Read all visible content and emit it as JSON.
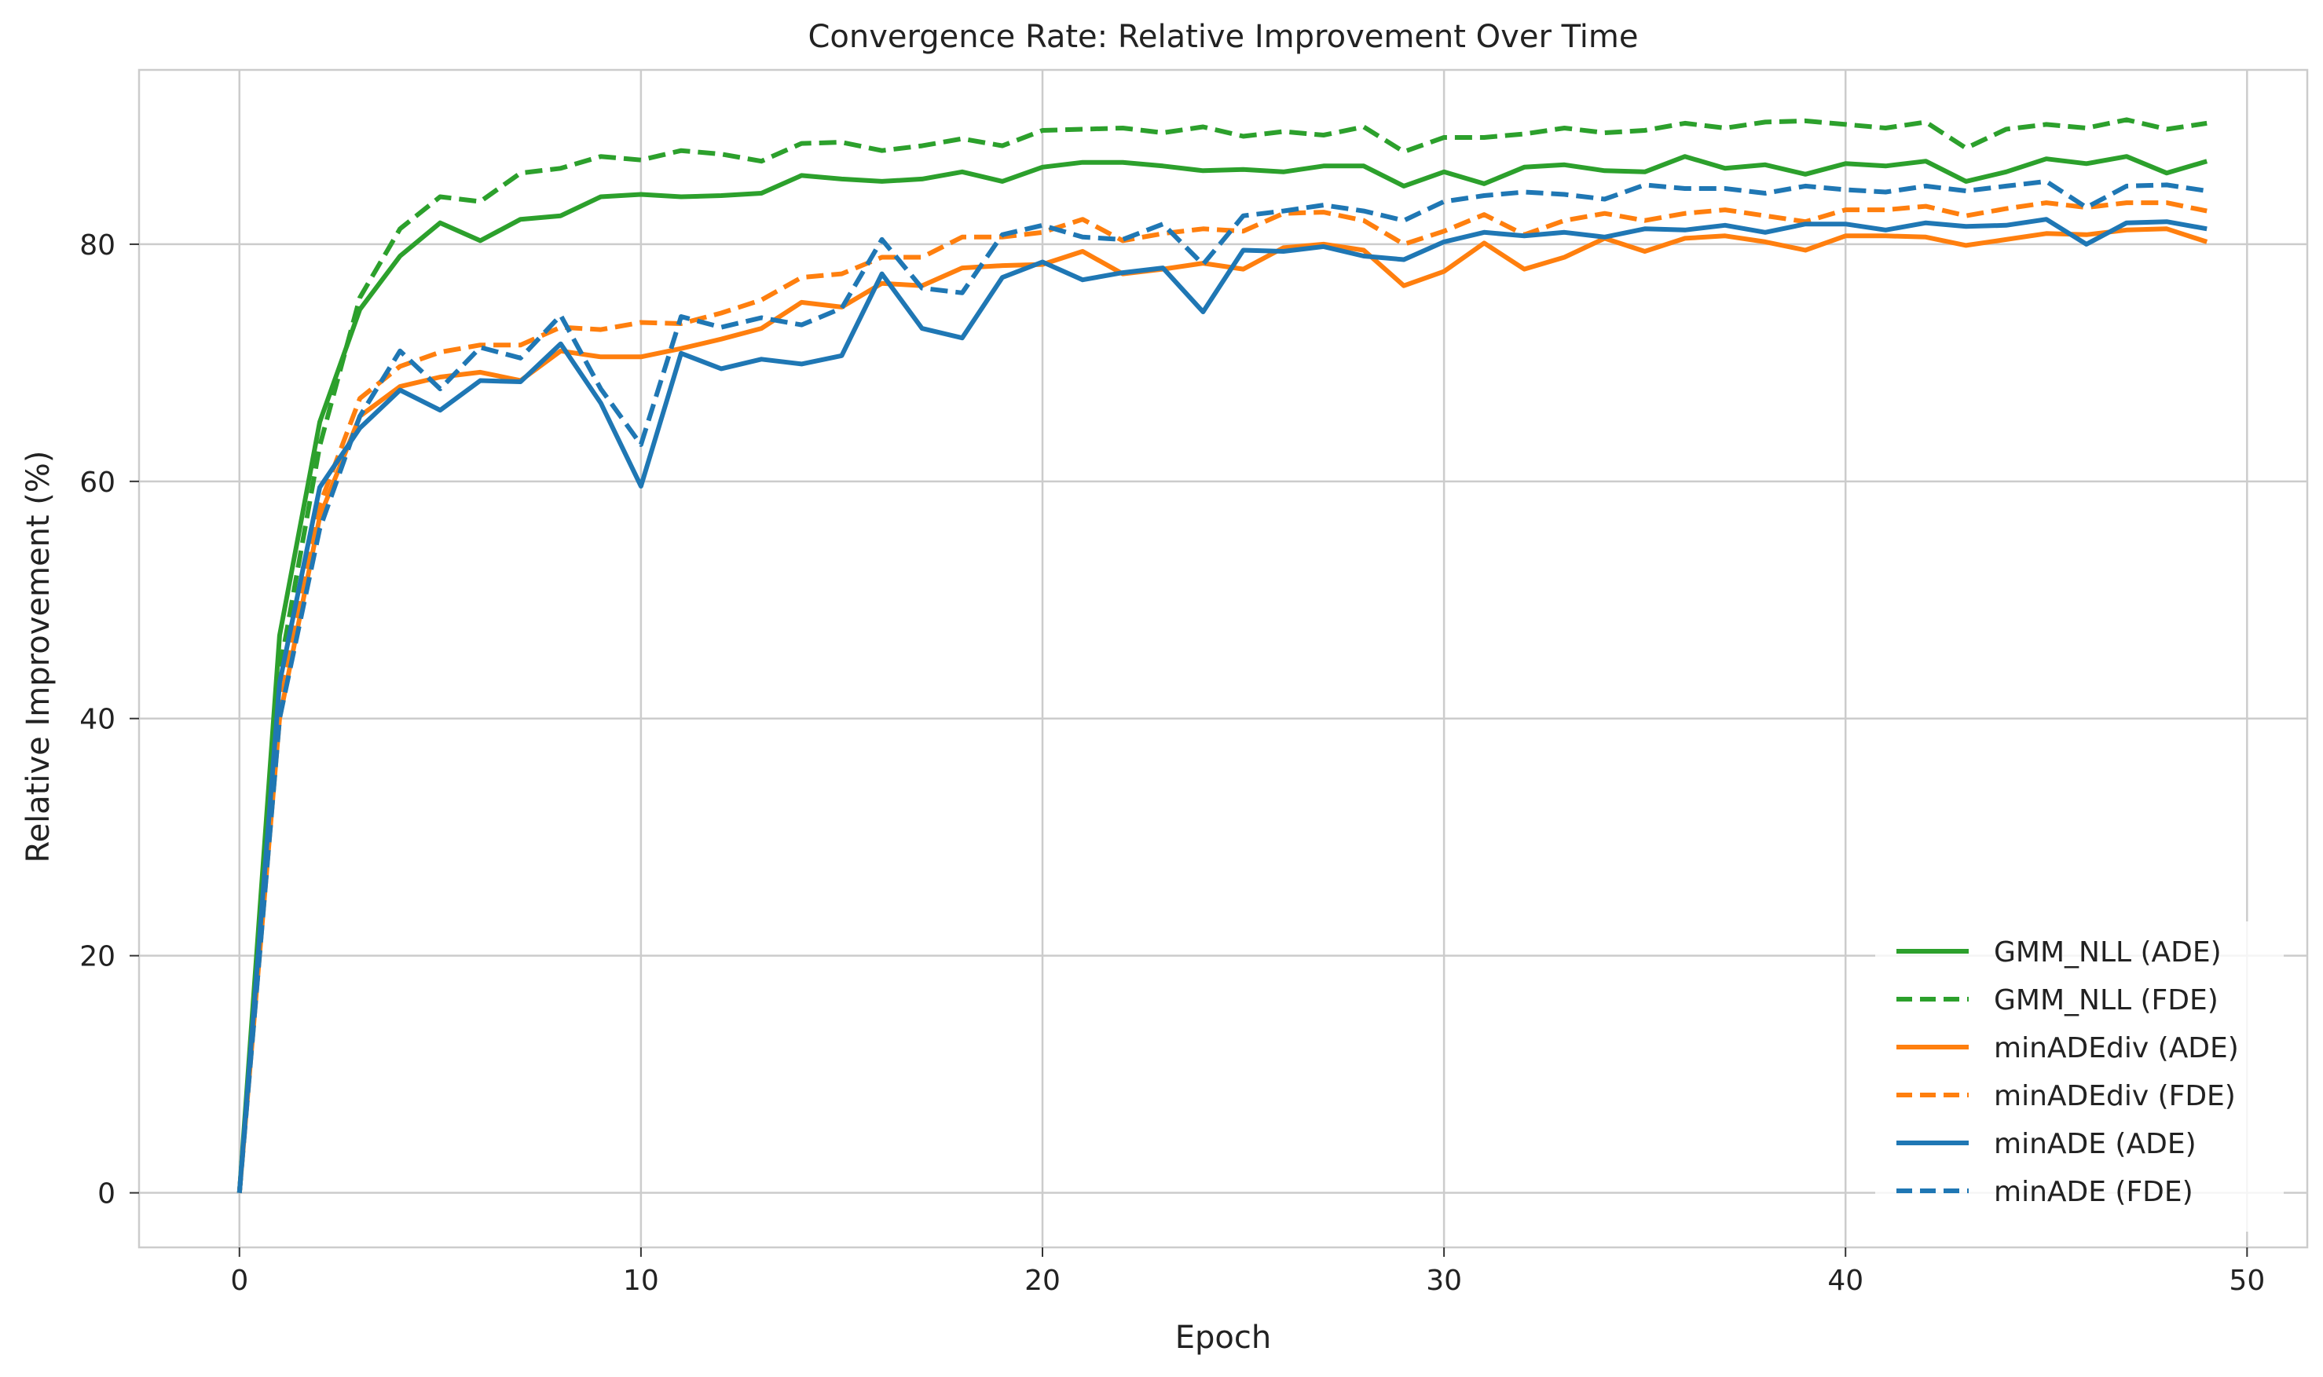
{
  "chart_data": {
    "type": "line",
    "title": "Convergence Rate: Relative Improvement Over Time",
    "xlabel": "Epoch",
    "ylabel": "Relative Improvement (%)",
    "xlim": [
      -2.5,
      51.5
    ],
    "ylim": [
      -4.6,
      94.7
    ],
    "xticks": [
      0,
      10,
      20,
      30,
      40,
      50
    ],
    "yticks": [
      0,
      20,
      40,
      60,
      80
    ],
    "grid": true,
    "legend_position": "lower-right",
    "x": [
      0,
      1,
      2,
      3,
      4,
      5,
      6,
      7,
      8,
      9,
      10,
      11,
      12,
      13,
      14,
      15,
      16,
      17,
      18,
      19,
      20,
      21,
      22,
      23,
      24,
      25,
      26,
      27,
      28,
      29,
      30,
      31,
      32,
      33,
      34,
      35,
      36,
      37,
      38,
      39,
      40,
      41,
      42,
      43,
      44,
      45,
      46,
      47,
      48,
      49
    ],
    "series": [
      {
        "name": "GMM_NLL (ADE)",
        "color": "#2ca02c",
        "dash": "solid",
        "values": [
          0,
          47,
          65,
          74.5,
          79,
          81.8,
          80.3,
          82.1,
          82.4,
          84,
          84.2,
          84,
          84.1,
          84.3,
          85.8,
          85.5,
          85.3,
          85.5,
          86.1,
          85.3,
          86.5,
          86.9,
          86.9,
          86.6,
          86.2,
          86.3,
          86.1,
          86.6,
          86.6,
          84.9,
          86.1,
          85.1,
          86.5,
          86.7,
          86.2,
          86.1,
          87.4,
          86.4,
          86.7,
          85.9,
          86.8,
          86.6,
          87,
          85.3,
          86.1,
          87.2,
          86.8,
          87.4,
          86,
          87
        ]
      },
      {
        "name": "GMM_NLL (FDE)",
        "color": "#2ca02c",
        "dash": "dashed",
        "values": [
          0,
          44,
          63,
          75.5,
          81.3,
          84,
          83.6,
          86,
          86.4,
          87.4,
          87.1,
          87.9,
          87.6,
          87,
          88.5,
          88.6,
          87.9,
          88.3,
          88.9,
          88.3,
          89.6,
          89.7,
          89.8,
          89.4,
          89.9,
          89.1,
          89.5,
          89.2,
          89.9,
          87.8,
          89,
          89,
          89.3,
          89.8,
          89.4,
          89.6,
          90.2,
          89.8,
          90.3,
          90.4,
          90.1,
          89.8,
          90.3,
          88.1,
          89.7,
          90.1,
          89.8,
          90.5,
          89.7,
          90.2
        ]
      },
      {
        "name": "minADEdiv (ADE)",
        "color": "#ff7f0e",
        "dash": "solid",
        "values": [
          0,
          40,
          57,
          65.5,
          68,
          68.8,
          69.2,
          68.5,
          71,
          70.5,
          70.5,
          71.2,
          72,
          72.9,
          75.1,
          74.7,
          76.7,
          76.5,
          78,
          78.2,
          78.3,
          79.4,
          77.5,
          77.9,
          78.4,
          77.9,
          79.7,
          80,
          79.5,
          76.5,
          77.7,
          80.1,
          77.9,
          78.9,
          80.5,
          79.4,
          80.5,
          80.7,
          80.2,
          79.5,
          80.7,
          80.7,
          80.6,
          79.9,
          80.4,
          80.9,
          80.8,
          81.2,
          81.3,
          80.2
        ]
      },
      {
        "name": "minADEdiv (FDE)",
        "color": "#ff7f0e",
        "dash": "dashed",
        "values": [
          0,
          41,
          58,
          67,
          69.7,
          70.9,
          71.5,
          71.5,
          73,
          72.8,
          73.4,
          73.3,
          74.2,
          75.3,
          77.2,
          77.5,
          78.9,
          78.9,
          80.6,
          80.6,
          81,
          82.1,
          80.3,
          80.9,
          81.3,
          81.1,
          82.6,
          82.7,
          82,
          80,
          81.1,
          82.5,
          80.8,
          82,
          82.6,
          82,
          82.6,
          82.9,
          82.4,
          81.9,
          82.9,
          82.9,
          83.2,
          82.4,
          83,
          83.5,
          83.1,
          83.5,
          83.5,
          82.8
        ]
      },
      {
        "name": "minADE (ADE)",
        "color": "#1f77b4",
        "dash": "solid",
        "values": [
          0,
          43,
          59.5,
          64.5,
          67.7,
          66,
          68.5,
          68.4,
          71.6,
          66.6,
          59.6,
          70.8,
          69.5,
          70.3,
          69.9,
          70.6,
          77.5,
          72.9,
          72.1,
          77.2,
          78.5,
          77,
          77.6,
          78,
          74.3,
          79.5,
          79.4,
          79.8,
          79,
          78.7,
          80.2,
          81,
          80.7,
          81,
          80.6,
          81.3,
          81.2,
          81.6,
          81,
          81.7,
          81.7,
          81.2,
          81.8,
          81.5,
          81.6,
          82.1,
          80,
          81.8,
          81.9,
          81.3
        ]
      },
      {
        "name": "minADE (FDE)",
        "color": "#1f77b4",
        "dash": "dashed",
        "values": [
          0,
          40,
          56,
          65.5,
          71,
          67.8,
          71.3,
          70.4,
          74,
          67.8,
          63.1,
          73.9,
          73,
          73.8,
          73.2,
          74.6,
          80.4,
          76.3,
          75.9,
          80.8,
          81.6,
          80.6,
          80.4,
          81.7,
          78.3,
          82.4,
          82.8,
          83.3,
          82.8,
          82,
          83.6,
          84.1,
          84.4,
          84.2,
          83.8,
          85,
          84.7,
          84.7,
          84.3,
          84.9,
          84.6,
          84.4,
          84.9,
          84.5,
          84.9,
          85.3,
          83.1,
          84.9,
          85,
          84.5
        ]
      }
    ]
  }
}
